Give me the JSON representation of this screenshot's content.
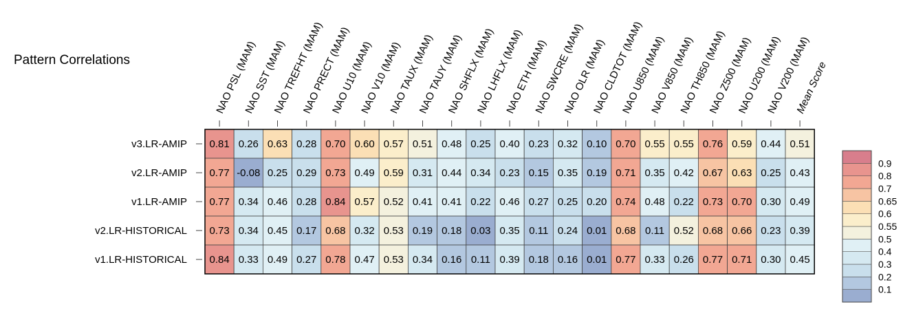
{
  "chart_data": {
    "type": "heatmap",
    "title": "Pattern Correlations",
    "columns": [
      "NAO PSL (MAM)",
      "NAO SST (MAM)",
      "NAO TREFHT (MAM)",
      "NAO PRECT (MAM)",
      "NAO U10 (MAM)",
      "NAO V10 (MAM)",
      "NAO TAUX (MAM)",
      "NAO TAUY (MAM)",
      "NAO SHFLX (MAM)",
      "NAO LHFLX (MAM)",
      "NAO ETH (MAM)",
      "NAO SWCRE (MAM)",
      "NAO OLR (MAM)",
      "NAO CLDTOT (MAM)",
      "NAO U850 (MAM)",
      "NAO V850 (MAM)",
      "NAO TH850 (MAM)",
      "NAO Z500 (MAM)",
      "NAO U200 (MAM)",
      "NAO V200 (MAM)",
      "Mean Score"
    ],
    "rows": [
      "v3.LR-AMIP",
      "v2.LR-AMIP",
      "v1.LR-AMIP",
      "v2.LR-HISTORICAL",
      "v1.LR-HISTORICAL"
    ],
    "values": [
      [
        0.81,
        0.26,
        0.63,
        0.28,
        0.7,
        0.6,
        0.57,
        0.51,
        0.48,
        0.25,
        0.4,
        0.23,
        0.32,
        0.1,
        0.7,
        0.55,
        0.55,
        0.76,
        0.59,
        0.44,
        0.51
      ],
      [
        0.77,
        -0.08,
        0.25,
        0.29,
        0.73,
        0.49,
        0.59,
        0.31,
        0.44,
        0.34,
        0.23,
        0.15,
        0.35,
        0.19,
        0.71,
        0.35,
        0.42,
        0.67,
        0.63,
        0.25,
        0.43
      ],
      [
        0.77,
        0.34,
        0.46,
        0.28,
        0.84,
        0.57,
        0.52,
        0.41,
        0.41,
        0.22,
        0.46,
        0.27,
        0.25,
        0.2,
        0.74,
        0.48,
        0.22,
        0.73,
        0.7,
        0.3,
        0.49
      ],
      [
        0.73,
        0.34,
        0.45,
        0.17,
        0.68,
        0.32,
        0.53,
        0.19,
        0.18,
        0.03,
        0.35,
        0.11,
        0.24,
        0.01,
        0.68,
        0.11,
        0.52,
        0.68,
        0.66,
        0.23,
        0.39
      ],
      [
        0.84,
        0.33,
        0.49,
        0.27,
        0.78,
        0.47,
        0.53,
        0.34,
        0.16,
        0.11,
        0.39,
        0.18,
        0.16,
        0.01,
        0.77,
        0.33,
        0.26,
        0.77,
        0.71,
        0.3,
        0.45
      ]
    ],
    "value_labels": [
      [
        "0.81",
        "0.26",
        "0.63",
        "0.28",
        "0.70",
        "0.60",
        "0.57",
        "0.51",
        "0.48",
        "0.25",
        "0.40",
        "0.23",
        "0.32",
        "0.10",
        "0.70",
        "0.55",
        "0.55",
        "0.76",
        "0.59",
        "0.44",
        "0.51"
      ],
      [
        "0.77",
        "-0.08",
        "0.25",
        "0.29",
        "0.73",
        "0.49",
        "0.59",
        "0.31",
        "0.44",
        "0.34",
        "0.23",
        "0.15",
        "0.35",
        "0.19",
        "0.71",
        "0.35",
        "0.42",
        "0.67",
        "0.63",
        "0.25",
        "0.43"
      ],
      [
        "0.77",
        "0.34",
        "0.46",
        "0.28",
        "0.84",
        "0.57",
        "0.52",
        "0.41",
        "0.41",
        "0.22",
        "0.46",
        "0.27",
        "0.25",
        "0.20",
        "0.74",
        "0.48",
        "0.22",
        "0.73",
        "0.70",
        "0.30",
        "0.49"
      ],
      [
        "0.73",
        "0.34",
        "0.45",
        "0.17",
        "0.68",
        "0.32",
        "0.53",
        "0.19",
        "0.18",
        "0.03",
        "0.35",
        "0.11",
        "0.24",
        "0.01",
        "0.68",
        "0.11",
        "0.52",
        "0.68",
        "0.66",
        "0.23",
        "0.39"
      ],
      [
        "0.84",
        "0.33",
        "0.49",
        "0.27",
        "0.78",
        "0.47",
        "0.53",
        "0.34",
        "0.16",
        "0.11",
        "0.39",
        "0.18",
        "0.16",
        "0.01",
        "0.77",
        "0.33",
        "0.26",
        "0.77",
        "0.71",
        "0.30",
        "0.45"
      ]
    ],
    "colorbar": {
      "levels": [
        -1.0,
        0.1,
        0.2,
        0.3,
        0.4,
        0.5,
        0.55,
        0.6,
        0.65,
        0.7,
        0.8,
        0.9,
        1.0
      ],
      "colors": [
        "#9aadd0",
        "#b3c8e0",
        "#c9dfec",
        "#d5e9f1",
        "#e0f0f5",
        "#f4f1de",
        "#fbeecb",
        "#fbdfb5",
        "#f7c4a3",
        "#f2a793",
        "#e8948e",
        "#d87e8c"
      ],
      "tick_labels": [
        "0.1",
        "0.2",
        "0.3",
        "0.4",
        "0.5",
        "0.55",
        "0.6",
        "0.65",
        "0.7",
        "0.8",
        "0.9"
      ]
    }
  }
}
